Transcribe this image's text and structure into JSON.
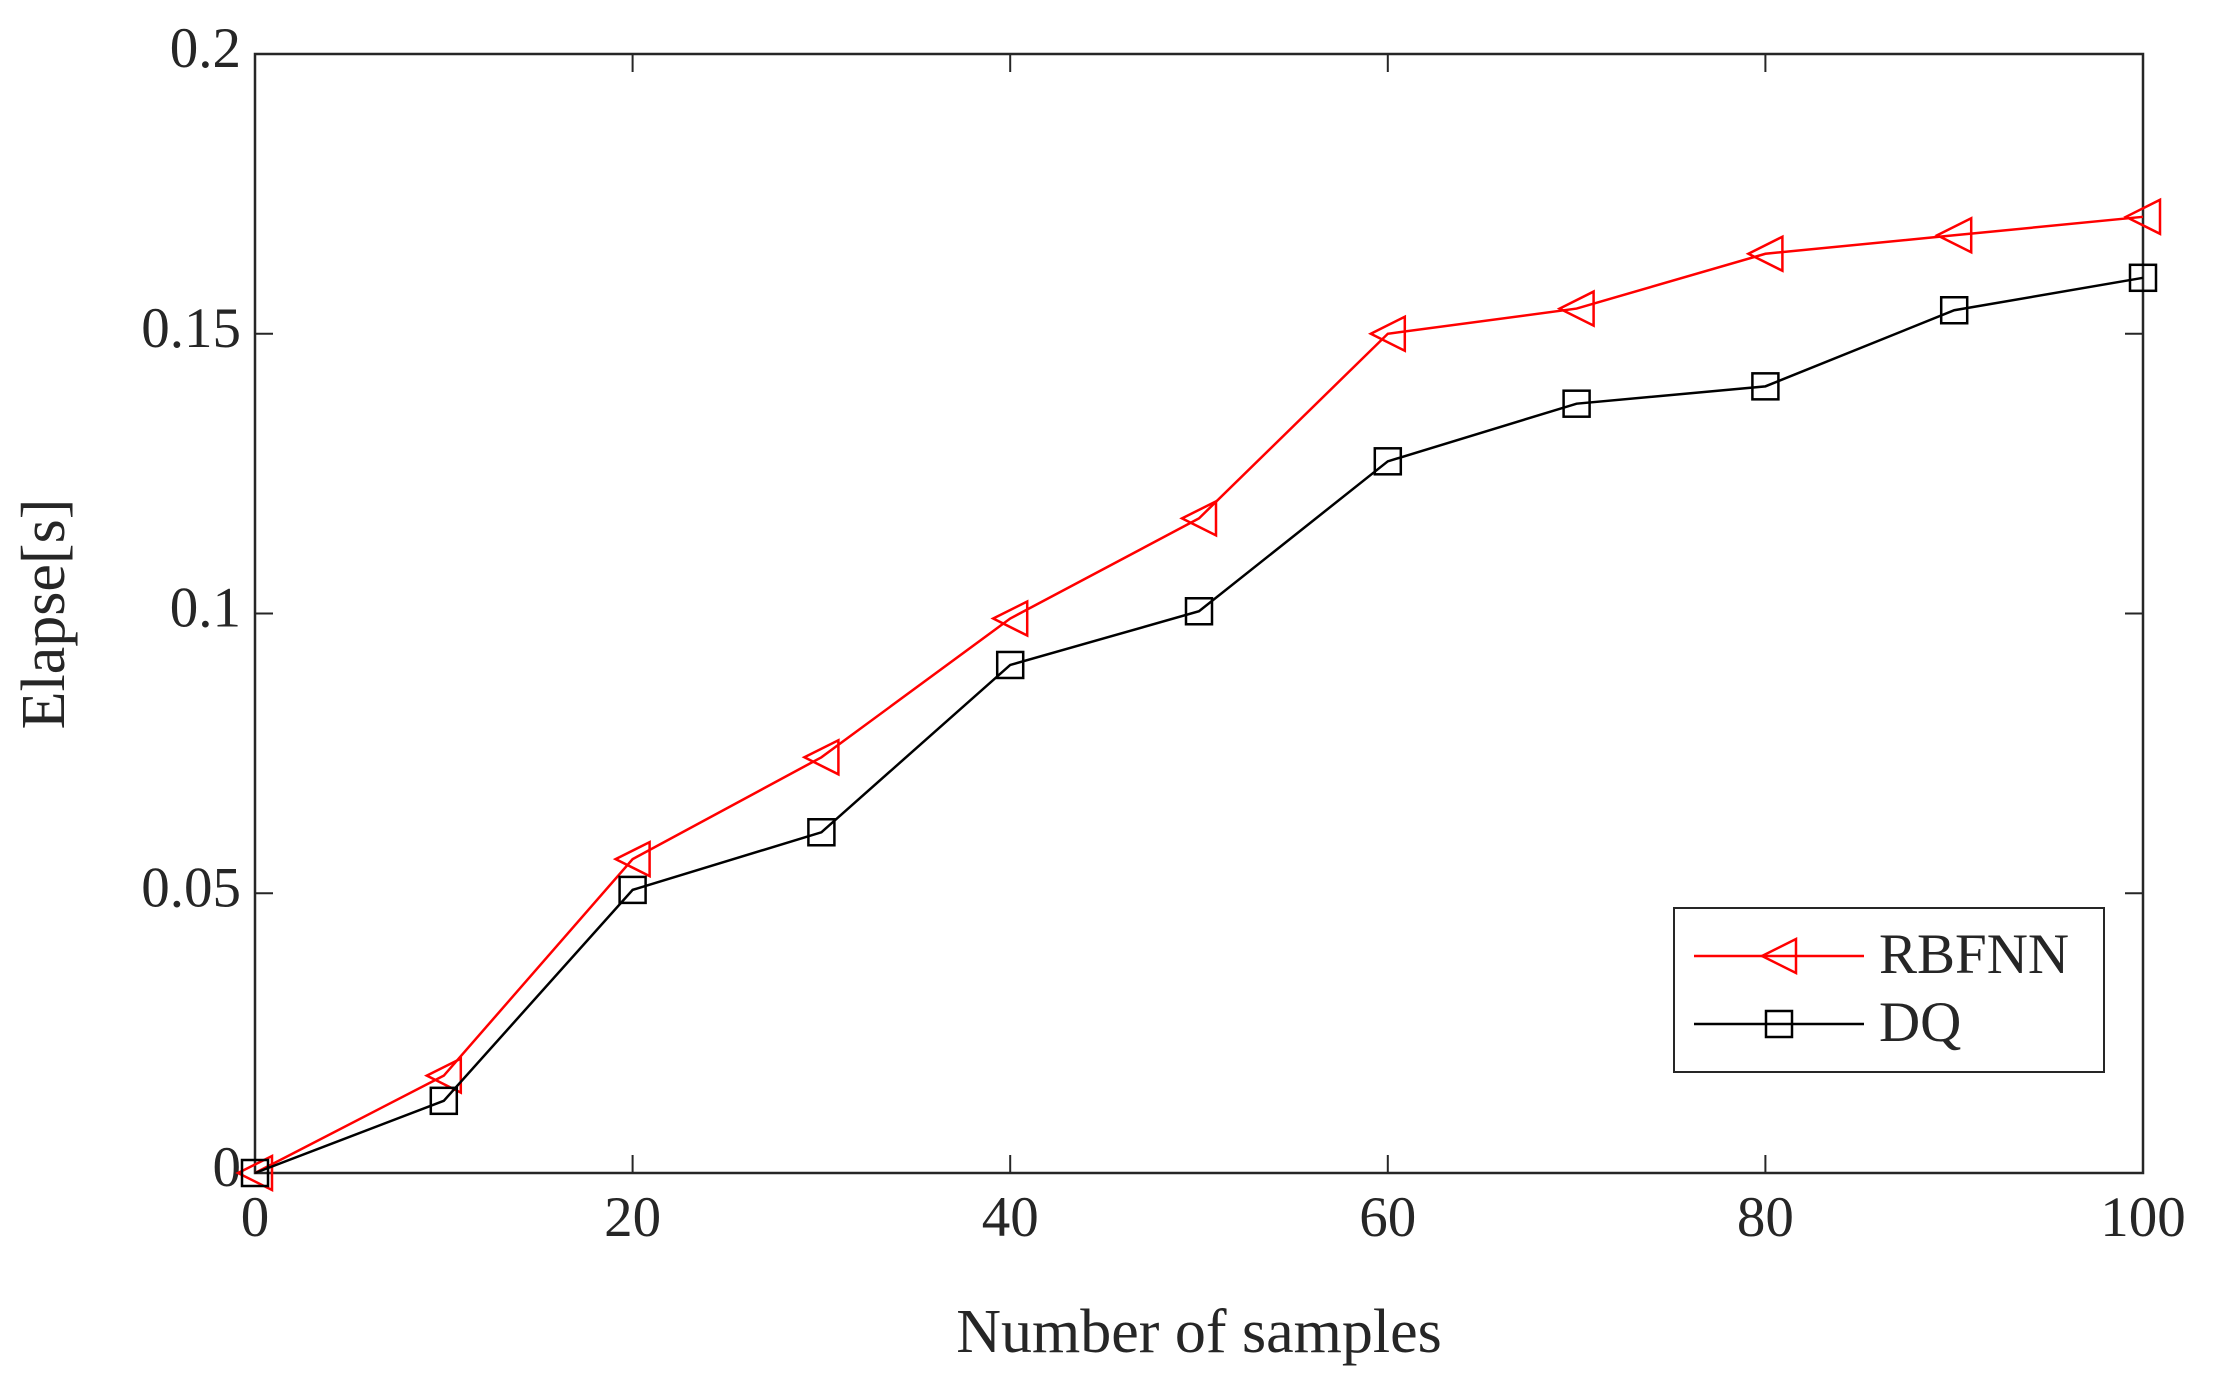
{
  "chart_data": {
    "type": "line",
    "xlabel": "Number of samples",
    "ylabel": "Elapse[s]",
    "x": [
      0,
      10,
      20,
      30,
      40,
      50,
      60,
      70,
      80,
      90,
      100
    ],
    "series": [
      {
        "name": "RBFNN",
        "color": "#ff0000",
        "marker": "triangle-left",
        "values": [
          0,
          0.0174,
          0.0561,
          0.0743,
          0.0991,
          0.117,
          0.15,
          0.1545,
          0.1643,
          0.1676,
          0.1709
        ]
      },
      {
        "name": "DQ",
        "color": "#000000",
        "marker": "square",
        "values": [
          0,
          0.0129,
          0.0506,
          0.0609,
          0.0908,
          0.1004,
          0.1272,
          0.1375,
          0.1406,
          0.1542,
          0.16
        ]
      }
    ],
    "xlim": [
      0,
      100
    ],
    "xticks": [
      0,
      20,
      40,
      60,
      80,
      100
    ],
    "ylim": [
      0,
      0.2
    ],
    "yticks": [
      0,
      0.05,
      0.1,
      0.15,
      0.2
    ],
    "grid": false,
    "legend": "lower right"
  }
}
